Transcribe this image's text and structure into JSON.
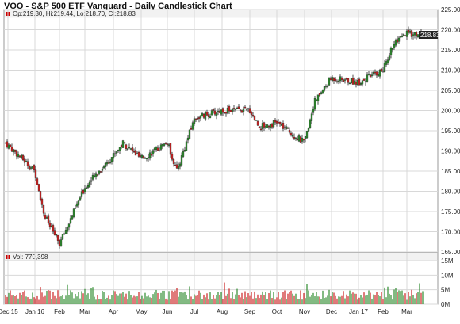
{
  "title": "VOO - S&P 500 ETF Vanguard - Daily Candlestick Chart",
  "ohlc_legend": "Op:219.30, Hi:219.44, Lo:218.70, Cl:218.83",
  "volume_legend": "Vol: 770,398",
  "last_price_label": "218.83",
  "colors": {
    "up": "#2e8b2e",
    "down": "#cc2222",
    "grid": "#d8d8d8",
    "panel_bg": "#f7f7f7",
    "marker": "#cc0000",
    "price_tag_bg": "#222222"
  },
  "chart_data": [
    {
      "type": "candlestick",
      "x_ticks": [
        "Dec 15",
        "Jan 16",
        "Feb",
        "Mar",
        "Apr",
        "May",
        "Jun",
        "Jul",
        "Aug",
        "Sep",
        "Oct",
        "Nov",
        "Dec",
        "Jan 17",
        "Feb",
        "Mar"
      ],
      "y_ticks": [
        "225.00",
        "220.00",
        "215.00",
        "210.00",
        "205.00",
        "200.00",
        "195.00",
        "190.00",
        "185.00",
        "180.00",
        "175.00",
        "170.00",
        "165.00"
      ],
      "ylim": [
        165,
        225
      ],
      "close_trend": [
        {
          "x": "Dec 15",
          "y": 192
        },
        {
          "x": "Jan 16",
          "y": 185
        },
        {
          "x": "Jan 16",
          "y": 174
        },
        {
          "x": "Feb",
          "y": 167
        },
        {
          "x": "Mar",
          "y": 181
        },
        {
          "x": "Apr",
          "y": 189
        },
        {
          "x": "Apr",
          "y": 192
        },
        {
          "x": "May",
          "y": 188
        },
        {
          "x": "Jun",
          "y": 192
        },
        {
          "x": "Jun",
          "y": 185
        },
        {
          "x": "Jul",
          "y": 198
        },
        {
          "x": "Aug",
          "y": 200
        },
        {
          "x": "Sep",
          "y": 200
        },
        {
          "x": "Sep",
          "y": 196
        },
        {
          "x": "Oct",
          "y": 197
        },
        {
          "x": "Nov",
          "y": 192
        },
        {
          "x": "Nov",
          "y": 202
        },
        {
          "x": "Dec",
          "y": 208
        },
        {
          "x": "Jan 17",
          "y": 207
        },
        {
          "x": "Feb",
          "y": 210
        },
        {
          "x": "Feb",
          "y": 216
        },
        {
          "x": "Mar",
          "y": 219
        },
        {
          "x": "Mar",
          "y": 218.83
        }
      ],
      "grid": true
    },
    {
      "type": "bar",
      "name": "Volume",
      "y_ticks": [
        "15M",
        "10M",
        "5M",
        "0M"
      ],
      "ylim": [
        0,
        15000000
      ],
      "last_value": 770398
    }
  ]
}
